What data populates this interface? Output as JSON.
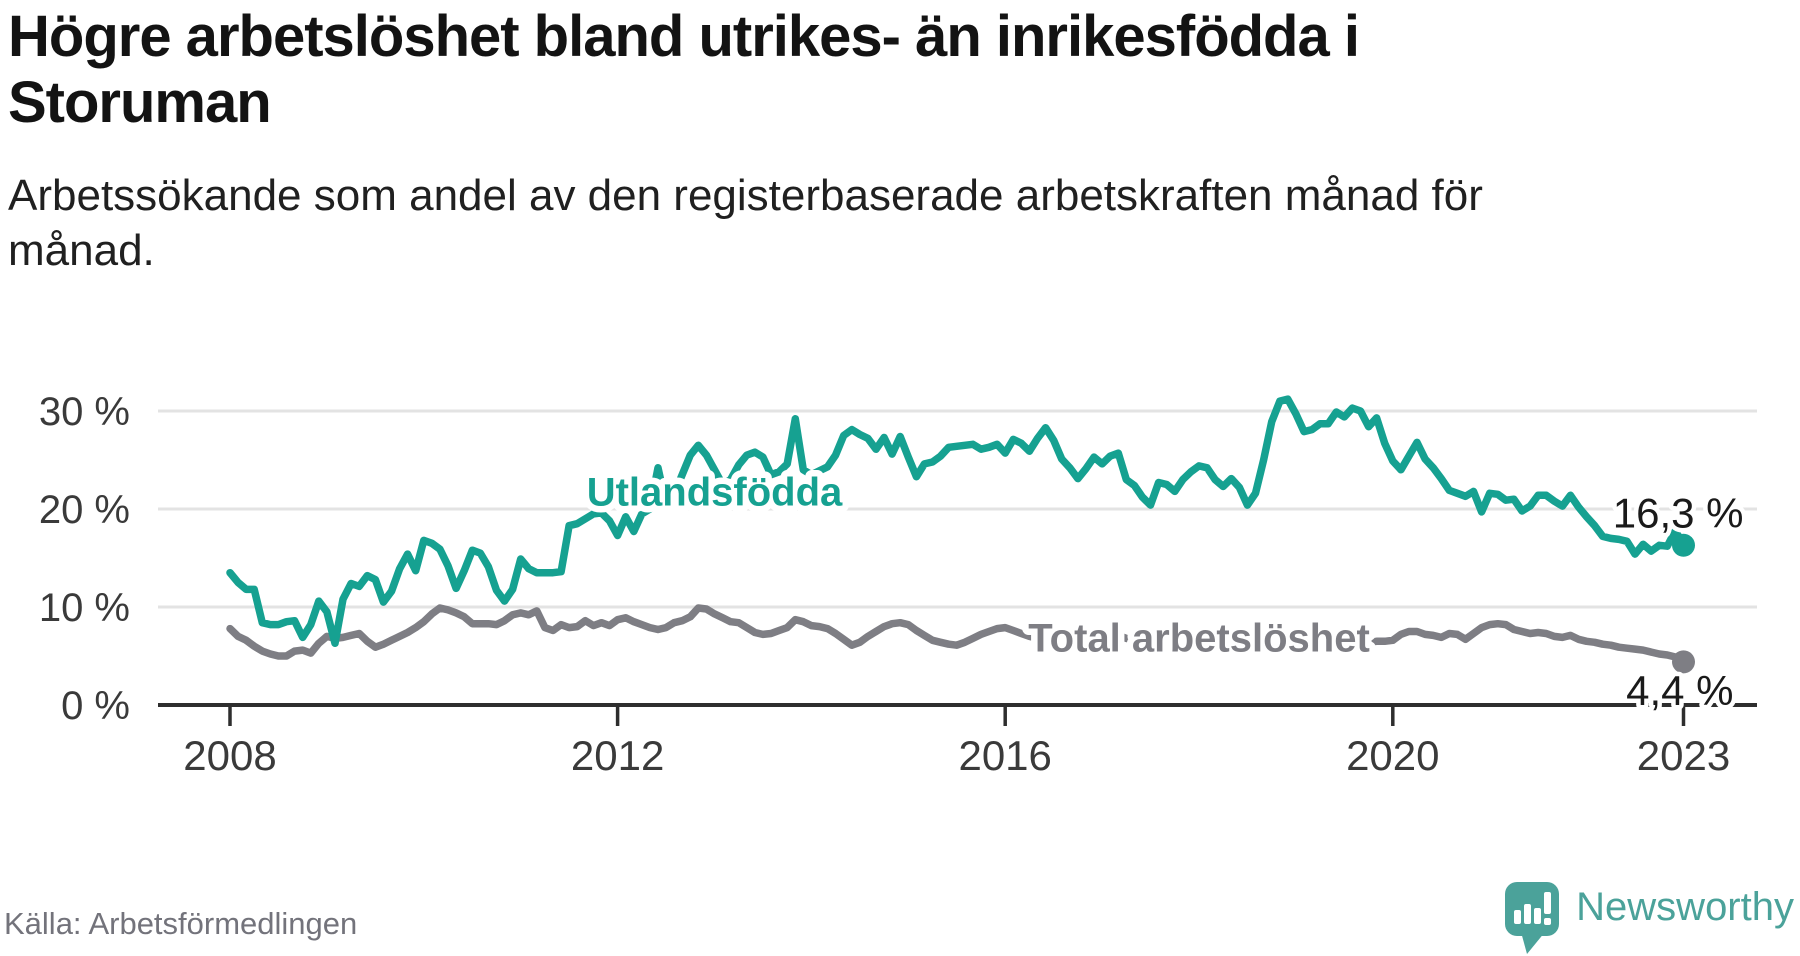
{
  "header": {
    "title_line1": "Högre arbetslöshet bland utrikes- än inrikesfödda i",
    "title_line2": "Storuman",
    "subtitle_line1": "Arbetssökande som andel av den registerbaserade arbetskraften månad för",
    "subtitle_line2": "månad."
  },
  "footer": {
    "source": "Källa: Arbetsförmedlingen",
    "logo_text": "Newsworthy"
  },
  "colors": {
    "teal": "#16a191",
    "gray": "#7e7e84",
    "grid": "#e3e3e3",
    "axis": "#2e2e2e",
    "tick_text": "#3a3a3a",
    "value_label": "#1a1a1a",
    "logo_teal": "#4ba29a"
  },
  "chart_data": {
    "type": "line",
    "unit": "%",
    "frequency": "monthly",
    "x_start": "2008-01",
    "x_end": "2023-01",
    "ylim": [
      0,
      33
    ],
    "grid": "horizontal",
    "legend_position": "inline-labels",
    "x_ticks": [
      2008,
      2012,
      2016,
      2020,
      2023
    ],
    "y_ticks": [
      {
        "value": 0,
        "label": "0 %"
      },
      {
        "value": 10,
        "label": "10 %"
      },
      {
        "value": 20,
        "label": "20 %"
      },
      {
        "value": 30,
        "label": "30 %"
      }
    ],
    "series": [
      {
        "name": "Utlandsfödda",
        "color_key": "teal",
        "end_label": "16,3 %",
        "label_anchor": {
          "year": 2013.0,
          "value": 21.8
        },
        "values": [
          13.5,
          12.5,
          11.8,
          11.8,
          8.4,
          8.2,
          8.2,
          8.5,
          8.6,
          6.9,
          8.2,
          10.6,
          9.5,
          6.3,
          10.8,
          12.4,
          12.1,
          13.2,
          12.8,
          10.5,
          11.6,
          13.9,
          15.4,
          13.7,
          16.8,
          16.5,
          15.9,
          14.2,
          11.9,
          13.7,
          15.8,
          15.5,
          14.1,
          11.7,
          10.6,
          11.8,
          14.9,
          13.9,
          13.5,
          13.5,
          13.5,
          13.6,
          18.3,
          18.5,
          19.0,
          19.5,
          19.6,
          18.8,
          17.3,
          19.2,
          17.7,
          19.5,
          20.0,
          24.2,
          20.5,
          21.5,
          23.5,
          25.5,
          26.5,
          25.5,
          24.0,
          22.5,
          23.0,
          24.5,
          25.5,
          25.8,
          25.3,
          23.5,
          23.8,
          24.6,
          29.2,
          24.0,
          23.5,
          23.9,
          24.3,
          25.5,
          27.5,
          28.1,
          27.6,
          27.2,
          26.1,
          27.3,
          25.6,
          27.4,
          25.3,
          23.3,
          24.6,
          24.8,
          25.4,
          26.3,
          26.4,
          26.5,
          26.6,
          26.1,
          26.3,
          26.6,
          25.7,
          27.1,
          26.7,
          25.9,
          27.2,
          28.3,
          27.0,
          25.1,
          24.2,
          23.1,
          24.1,
          25.3,
          24.6,
          25.4,
          25.7,
          23.0,
          22.4,
          21.2,
          20.4,
          22.7,
          22.5,
          21.8,
          23.0,
          23.8,
          24.4,
          24.2,
          23.0,
          22.3,
          23.1,
          22.2,
          20.4,
          21.6,
          25.0,
          28.9,
          31.0,
          31.2,
          29.7,
          27.9,
          28.1,
          28.7,
          28.7,
          29.9,
          29.4,
          30.3,
          30.0,
          28.4,
          29.3,
          26.7,
          24.9,
          24.0,
          25.4,
          26.8,
          25.1,
          24.2,
          23.1,
          21.9,
          21.6,
          21.3,
          21.8,
          19.7,
          21.6,
          21.5,
          20.9,
          21.0,
          19.8,
          20.3,
          21.4,
          21.4,
          20.8,
          20.3,
          21.4,
          20.2,
          19.2,
          18.3,
          17.2,
          17.0,
          16.9,
          16.7,
          15.4,
          16.4,
          15.7,
          16.3,
          16.2,
          17.8,
          16.3
        ]
      },
      {
        "name": "Total arbetslöshet",
        "color_key": "gray",
        "end_label": "4,4 %",
        "label_anchor": {
          "year": 2018.0,
          "value": 6.9
        },
        "values": [
          7.8,
          7.0,
          6.6,
          6.0,
          5.5,
          5.2,
          5.0,
          5.0,
          5.5,
          5.6,
          5.3,
          6.3,
          7.0,
          6.8,
          6.9,
          7.1,
          7.3,
          6.5,
          5.9,
          6.2,
          6.6,
          7.0,
          7.4,
          7.9,
          8.5,
          9.3,
          9.9,
          9.7,
          9.4,
          9.0,
          8.3,
          8.3,
          8.3,
          8.2,
          8.6,
          9.2,
          9.4,
          9.2,
          9.6,
          7.9,
          7.6,
          8.2,
          7.9,
          8.0,
          8.6,
          8.1,
          8.4,
          8.1,
          8.7,
          8.9,
          8.5,
          8.2,
          7.9,
          7.7,
          7.9,
          8.4,
          8.6,
          9.0,
          9.9,
          9.8,
          9.3,
          8.9,
          8.5,
          8.4,
          7.9,
          7.4,
          7.2,
          7.3,
          7.6,
          7.9,
          8.7,
          8.5,
          8.1,
          8.0,
          7.8,
          7.3,
          6.7,
          6.1,
          6.4,
          7.0,
          7.5,
          8.0,
          8.3,
          8.4,
          8.2,
          7.6,
          7.1,
          6.6,
          6.4,
          6.2,
          6.1,
          6.4,
          6.8,
          7.2,
          7.5,
          7.8,
          7.9,
          7.6,
          7.3,
          7.0,
          6.8,
          6.6,
          6.5,
          6.7,
          6.9,
          7.1,
          7.3,
          7.5,
          7.6,
          7.4,
          7.1,
          6.8,
          6.6,
          6.4,
          6.3,
          6.5,
          6.7,
          6.9,
          7.0,
          7.2,
          7.3,
          7.1,
          6.9,
          6.6,
          6.4,
          6.2,
          6.1,
          6.3,
          6.5,
          6.6,
          6.8,
          7.0,
          7.0,
          6.8,
          6.6,
          6.4,
          6.2,
          6.1,
          6.0,
          6.2,
          6.3,
          6.4,
          6.5,
          6.5,
          6.6,
          7.2,
          7.5,
          7.5,
          7.2,
          7.1,
          6.9,
          7.3,
          7.2,
          6.7,
          7.3,
          7.9,
          8.2,
          8.3,
          8.2,
          7.7,
          7.5,
          7.3,
          7.4,
          7.3,
          7.0,
          6.9,
          7.1,
          6.7,
          6.5,
          6.4,
          6.2,
          6.1,
          5.9,
          5.8,
          5.7,
          5.6,
          5.4,
          5.2,
          5.1,
          4.9,
          4.4
        ]
      }
    ]
  }
}
